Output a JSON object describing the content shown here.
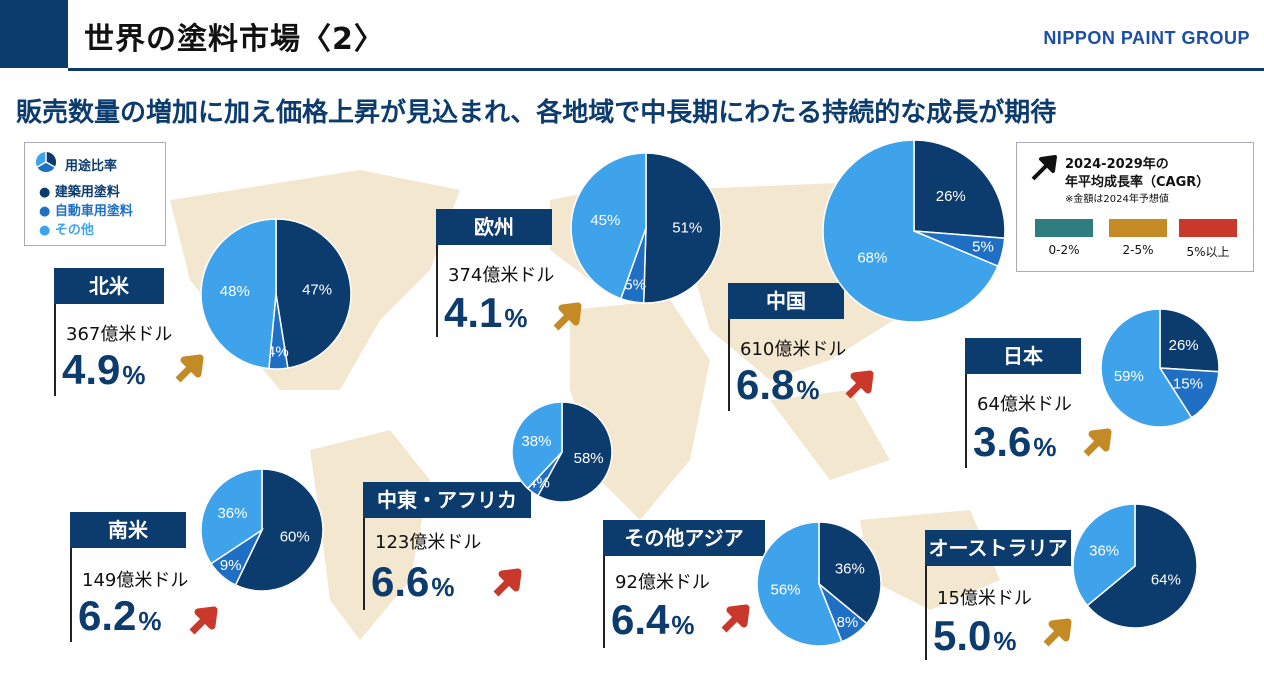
{
  "header": {
    "title": "世界の塗料市場〈2〉",
    "brand": "NIPPON PAINT GROUP"
  },
  "subtitle": "販売数量の増加に加え価格上昇が見込まれ、各地域で中長期にわたる持続的な成長が期待",
  "colors": {
    "navy": "#0c3b6e",
    "auto_blue": "#1f6fc4",
    "other_blue": "#3fa3ec",
    "cagr_low": "#2f7d7e",
    "cagr_mid": "#c48a25",
    "cagr_high": "#c9382a",
    "map": "#f3e7cf"
  },
  "legend_usage": {
    "title": "用途比率",
    "items": [
      {
        "label": "● 建築用塗料",
        "color": "#0c3b6e"
      },
      {
        "label": "● 自動車用塗料",
        "color": "#1f6fc4"
      },
      {
        "label": "● その他",
        "color": "#3fa3ec"
      }
    ]
  },
  "legend_cagr": {
    "title_line1": "2024-2029年の",
    "title_line2": "年平均成長率（CAGR）",
    "note": "※金額は2024年予想値",
    "ranges": [
      {
        "label": "0-2%",
        "color": "#2f7d7e"
      },
      {
        "label": "2-5%",
        "color": "#c48a25"
      },
      {
        "label": "5%以上",
        "color": "#c9382a"
      }
    ]
  },
  "chart_data": {
    "type": "pie",
    "series_names": [
      "建築用塗料",
      "自動車用塗料",
      "その他"
    ],
    "regions": [
      {
        "name": "北米",
        "market_size": "367億米ドル",
        "cagr": "4.9",
        "cagr_unit": "%",
        "shares": [
          47,
          4,
          48
        ],
        "labels": [
          "47%",
          "4%",
          "48%"
        ]
      },
      {
        "name": "欧州",
        "market_size": "374億米ドル",
        "cagr": "4.1",
        "cagr_unit": "%",
        "shares": [
          51,
          5,
          45
        ],
        "labels": [
          "51%",
          "5%",
          "45%"
        ]
      },
      {
        "name": "中国",
        "market_size": "610億米ドル",
        "cagr": "6.8",
        "cagr_unit": "%",
        "shares": [
          26,
          5,
          68
        ],
        "labels": [
          "26%",
          "5%",
          "68%"
        ]
      },
      {
        "name": "日本",
        "market_size": "64億米ドル",
        "cagr": "3.6",
        "cagr_unit": "%",
        "shares": [
          26,
          15,
          59
        ],
        "labels": [
          "26%",
          "15%",
          "59%"
        ]
      },
      {
        "name": "中東・アフリカ",
        "market_size": "123億米ドル",
        "cagr": "6.6",
        "cagr_unit": "%",
        "shares": [
          58,
          4,
          38
        ],
        "labels": [
          "58%",
          "4%",
          "38%"
        ]
      },
      {
        "name": "南米",
        "market_size": "149億米ドル",
        "cagr": "6.2",
        "cagr_unit": "%",
        "shares": [
          60,
          9,
          36
        ],
        "labels": [
          "60%",
          "9%",
          "36%"
        ]
      },
      {
        "name": "その他アジア",
        "market_size": "92億米ドル",
        "cagr": "6.4",
        "cagr_unit": "%",
        "shares": [
          36,
          8,
          56
        ],
        "labels": [
          "36%",
          "8%",
          "56%"
        ]
      },
      {
        "name": "オーストラリア",
        "market_size": "15億米ドル",
        "cagr": "5.0",
        "cagr_unit": "%",
        "shares": [
          64,
          0,
          36
        ],
        "labels": [
          "64%",
          "",
          "36%"
        ]
      }
    ]
  }
}
